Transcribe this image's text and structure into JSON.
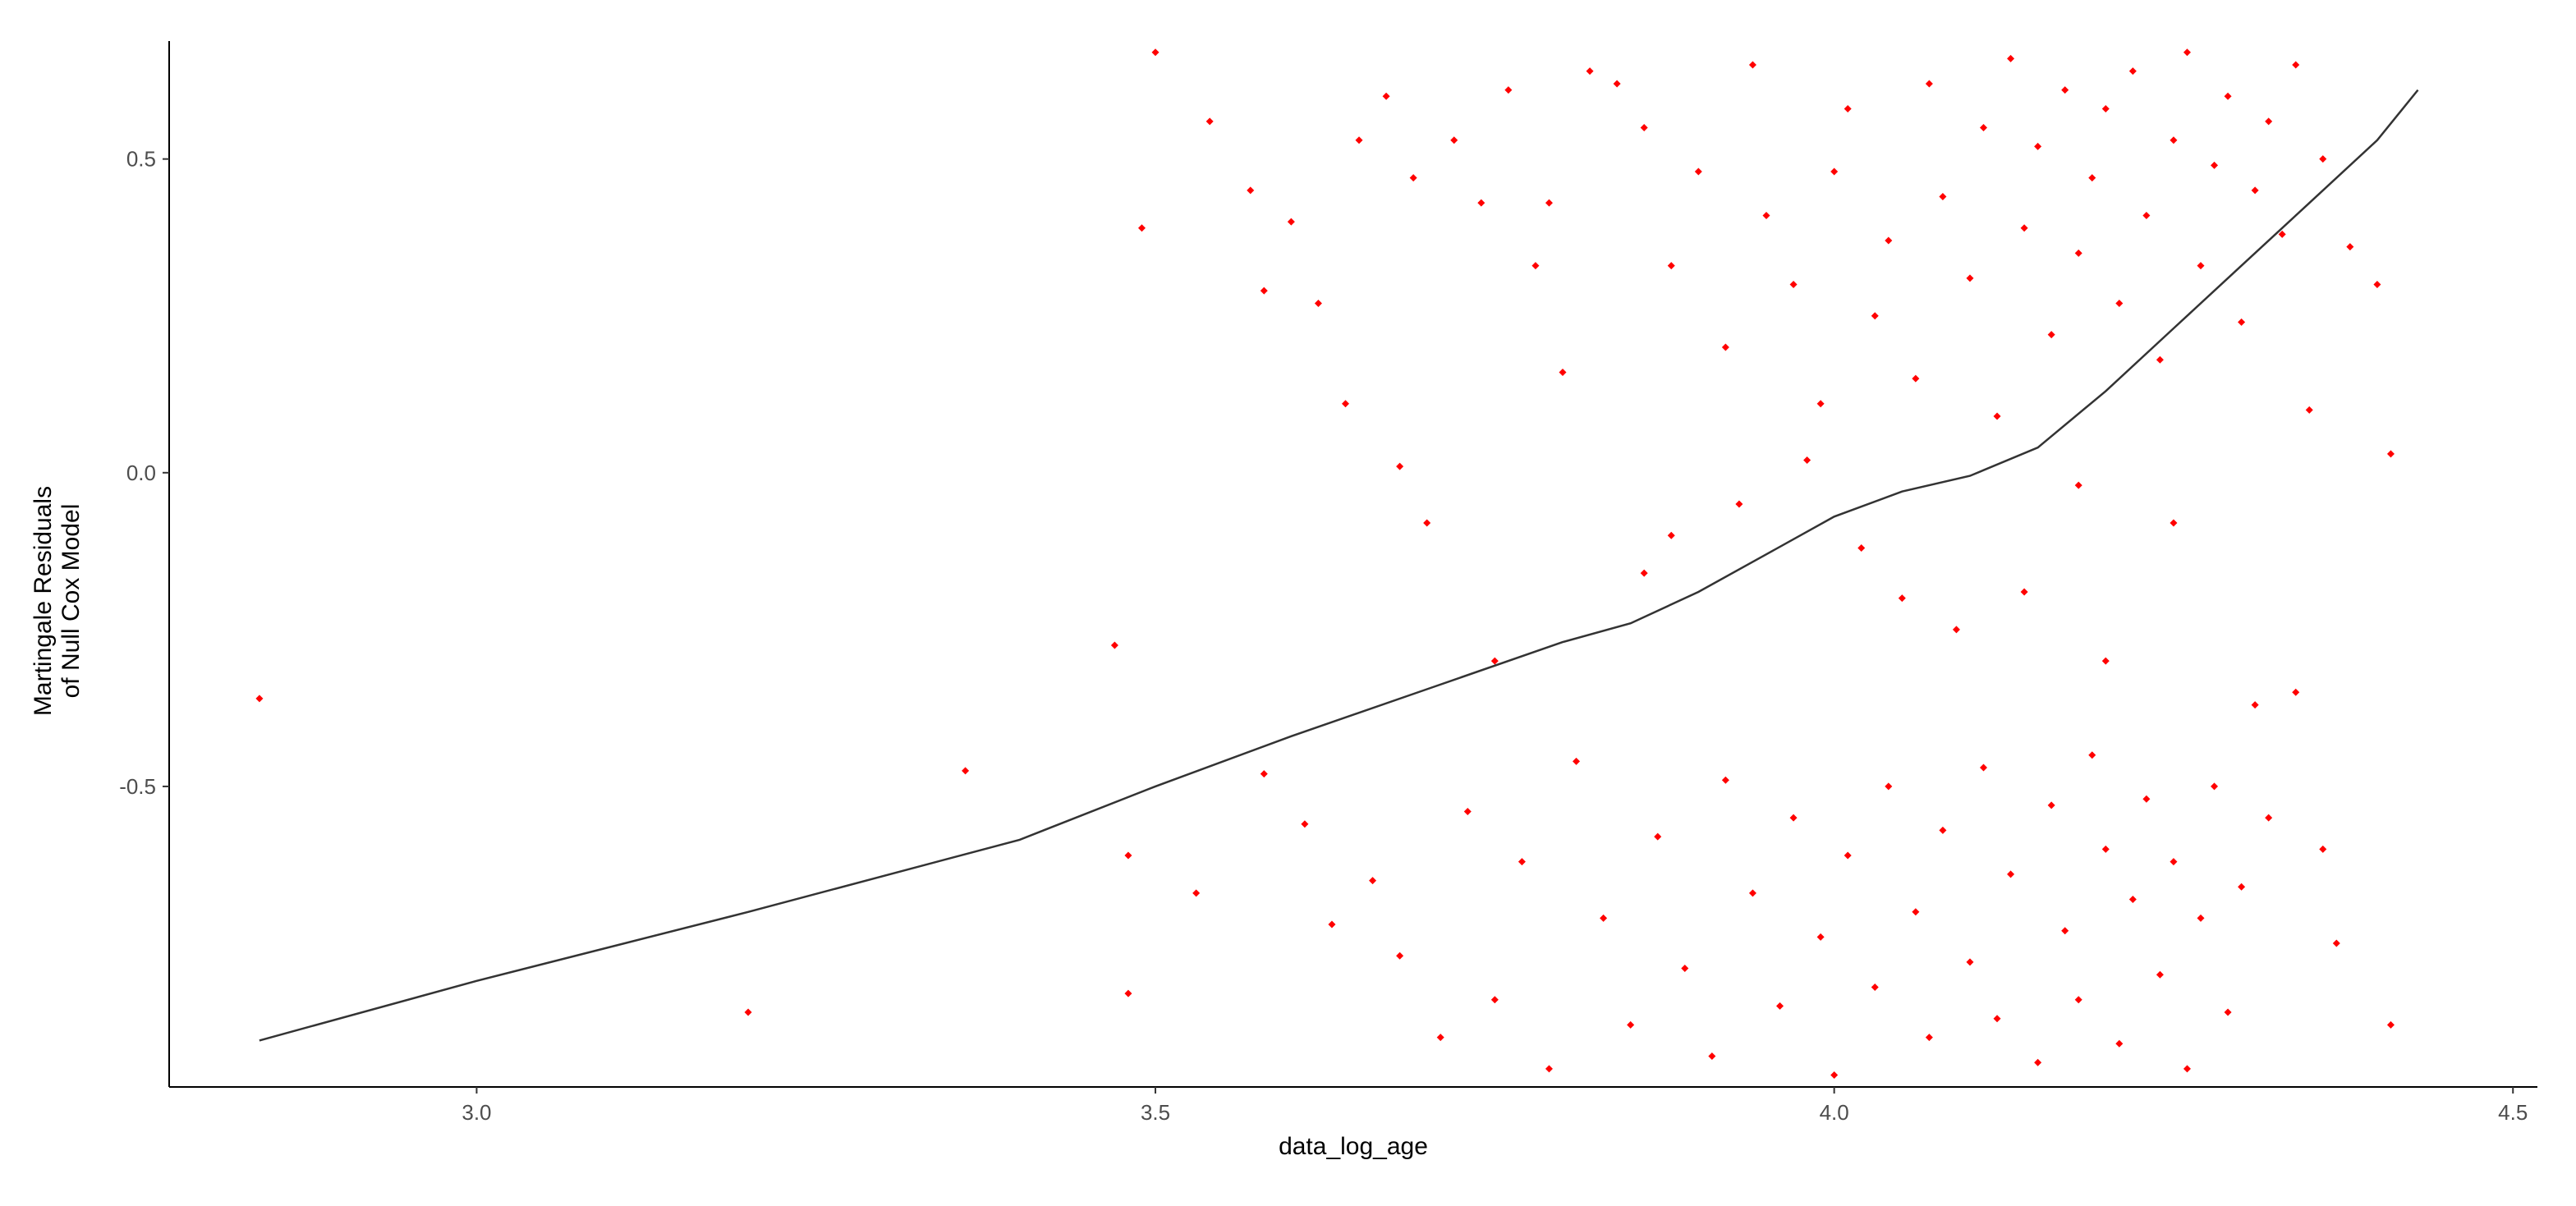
{
  "chart_data": {
    "type": "scatter",
    "xlabel": "data_log_age",
    "ylabel": [
      "Martingale Residuals",
      "of Null Cox Model"
    ],
    "xlim": [
      2.7735,
      4.518
    ],
    "ylim": [
      -0.979,
      0.688
    ],
    "xticks": [
      {
        "value": 3,
        "label": "3.0"
      },
      3.5,
      {
        "value": 4,
        "label": "4.0"
      },
      4.5
    ],
    "yticks": [
      -0.5,
      {
        "value": 0,
        "label": "0.0"
      },
      0.5
    ],
    "grid": false,
    "series": [
      {
        "color": "#ff0000",
        "x": [
          2.84,
          3.2,
          3.36,
          3.47,
          3.48,
          3.48,
          3.49,
          3.5,
          3.53,
          3.54,
          4.41,
          4.41,
          4.4,
          4.38,
          3.57,
          3.58,
          3.6,
          3.62,
          3.64,
          3.65,
          3.67,
          3.69,
          3.72,
          3.74,
          3.76,
          3.78,
          3.79,
          3.8,
          3.82,
          3.84,
          3.86,
          3.88,
          3.9,
          3.92,
          3.94,
          3.95,
          3.97,
          3.99,
          4.0,
          4.01,
          4.03,
          4.04,
          4.06,
          4.07,
          4.08,
          4.1,
          4.11,
          4.12,
          4.13,
          4.14,
          4.15,
          4.16,
          4.17,
          4.18,
          4.19,
          4.2,
          4.21,
          4.22,
          4.23,
          4.24,
          4.25,
          4.26,
          4.27,
          4.28,
          4.29,
          4.3,
          4.31,
          4.32,
          4.33,
          4.34,
          4.35,
          4.36,
          3.98,
          4.02,
          4.05,
          4.09,
          3.93,
          3.88,
          4.14,
          4.2,
          4.25,
          4.31,
          4.18,
          3.86,
          3.75,
          3.7,
          3.68,
          3.58,
          3.61,
          3.63,
          3.66,
          3.68,
          3.71,
          3.73,
          3.75,
          3.77,
          3.79,
          3.81,
          3.83,
          3.85,
          3.87,
          3.89,
          3.91,
          3.92,
          3.94,
          3.96,
          3.97,
          3.99,
          4.0,
          4.01,
          4.03,
          4.04,
          4.06,
          4.07,
          4.08,
          4.1,
          4.11,
          4.12,
          4.13,
          4.15,
          4.16,
          4.17,
          4.18,
          4.19,
          4.2,
          4.21,
          4.22,
          4.23,
          4.24,
          4.25,
          4.26,
          4.27,
          4.28,
          4.29,
          4.3,
          4.32,
          4.34,
          4.36,
          4.37
        ],
        "values": [
          -0.36,
          -0.86,
          -0.475,
          -0.275,
          -0.61,
          -0.83,
          0.39,
          0.67,
          -0.67,
          0.56,
          0.03,
          -0.88,
          0.3,
          0.36,
          0.45,
          0.29,
          0.4,
          0.27,
          0.11,
          0.53,
          0.6,
          0.47,
          0.53,
          0.43,
          0.61,
          0.33,
          0.43,
          0.16,
          0.64,
          0.62,
          0.55,
          0.33,
          0.48,
          0.2,
          0.65,
          0.41,
          0.3,
          0.11,
          0.48,
          0.58,
          0.25,
          0.37,
          0.15,
          0.62,
          0.44,
          0.31,
          0.55,
          0.09,
          0.66,
          0.39,
          0.52,
          0.22,
          0.61,
          0.35,
          0.47,
          0.58,
          0.27,
          0.64,
          0.41,
          0.18,
          0.53,
          0.67,
          0.33,
          0.49,
          0.6,
          0.24,
          0.45,
          0.56,
          0.38,
          0.65,
          0.1,
          0.5,
          0.02,
          -0.12,
          -0.2,
          -0.25,
          -0.05,
          -0.1,
          -0.19,
          -0.3,
          -0.08,
          -0.37,
          -0.02,
          -0.16,
          -0.3,
          -0.08,
          0.01,
          -0.48,
          -0.56,
          -0.72,
          -0.65,
          -0.77,
          -0.9,
          -0.54,
          -0.84,
          -0.62,
          -0.95,
          -0.46,
          -0.71,
          -0.88,
          -0.58,
          -0.79,
          -0.93,
          -0.49,
          -0.67,
          -0.85,
          -0.55,
          -0.74,
          -0.96,
          -0.61,
          -0.82,
          -0.5,
          -0.7,
          -0.9,
          -0.57,
          -0.78,
          -0.47,
          -0.87,
          -0.64,
          -0.94,
          -0.53,
          -0.73,
          -0.84,
          -0.45,
          -0.6,
          -0.91,
          -0.68,
          -0.52,
          -0.8,
          -0.62,
          -0.95,
          -0.71,
          -0.5,
          -0.86,
          -0.66,
          -0.55,
          -0.35,
          -0.6,
          -0.75
        ]
      }
    ],
    "smooth": {
      "color": "#333333",
      "x": [
        2.84,
        3.0,
        3.2,
        3.4,
        3.5,
        3.6,
        3.7,
        3.8,
        3.85,
        3.9,
        3.95,
        4.0,
        4.05,
        4.1,
        4.15,
        4.2,
        4.25,
        4.3,
        4.35,
        4.4,
        4.43
      ],
      "values": [
        -0.905,
        -0.81,
        -0.7,
        -0.585,
        -0.5,
        -0.42,
        -0.345,
        -0.27,
        -0.24,
        -0.19,
        -0.13,
        -0.07,
        -0.03,
        -0.005,
        0.04,
        0.13,
        0.23,
        0.33,
        0.43,
        0.53,
        0.61
      ]
    }
  }
}
